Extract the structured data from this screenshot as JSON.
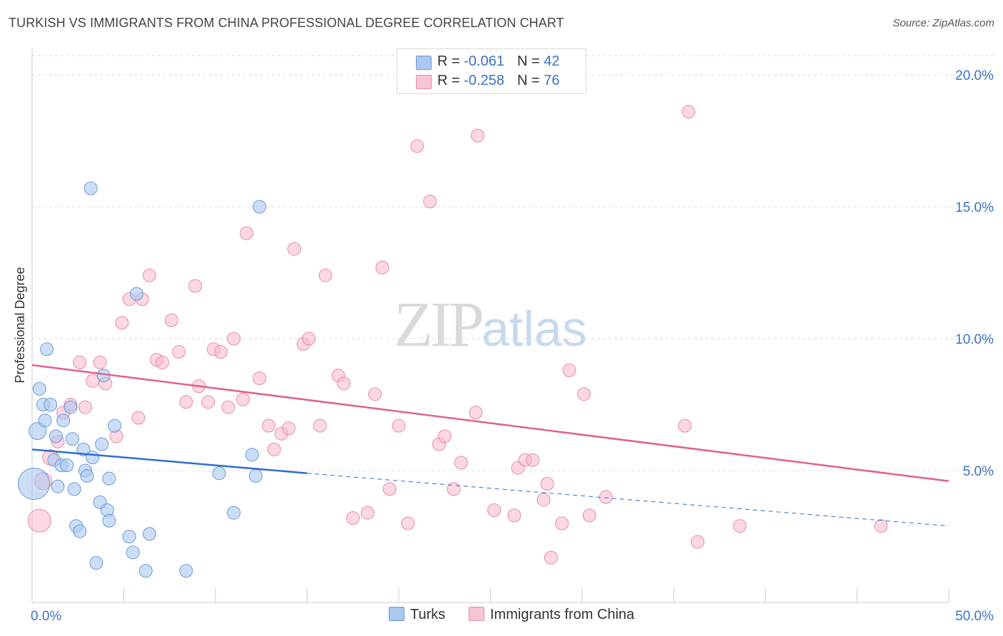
{
  "title": "TURKISH VS IMMIGRANTS FROM CHINA PROFESSIONAL DEGREE CORRELATION CHART",
  "source": "Source: ZipAtlas.com",
  "watermark": {
    "zip": "ZIP",
    "atlas": "atlas"
  },
  "colors": {
    "turks_fill": "#aac8f0",
    "turks_stroke": "#6a9ad8",
    "turks_line": "#2f6fcc",
    "china_fill": "#f7b8cb",
    "china_stroke": "#e88aa8",
    "china_line": "#e0608c",
    "axis_label": "#3b73c4",
    "grid": "#dddddd"
  },
  "legend": {
    "rows": [
      {
        "r_label": "R = ",
        "r_value": "-0.061",
        "n_label": "N = ",
        "n_value": "42"
      },
      {
        "r_label": "R = ",
        "r_value": "-0.258",
        "n_label": "N = ",
        "n_value": "76"
      }
    ]
  },
  "bottom_legend": {
    "turks": "Turks",
    "china": "Immigrants from China"
  },
  "chart_data": {
    "type": "scatter",
    "title": "TURKISH VS IMMIGRANTS FROM CHINA PROFESSIONAL DEGREE CORRELATION CHART",
    "xlabel": "",
    "ylabel": "Professional Degree",
    "xlim": [
      0,
      50
    ],
    "ylim": [
      0,
      21
    ],
    "x_tick_labels": [
      "0.0%",
      "50.0%"
    ],
    "y_ticks": [
      5,
      10,
      15,
      20
    ],
    "y_tick_labels": [
      "5.0%",
      "10.0%",
      "15.0%",
      "20.0%"
    ],
    "grid": true,
    "legend_placement": "top-center",
    "series": [
      {
        "name": "Turks",
        "trend": {
          "x0": 0,
          "y0": 5.8,
          "x1": 15,
          "y1": 4.9,
          "dash_to_x": 50,
          "dash_to_y": 2.9
        },
        "points": [
          [
            0.1,
            4.5,
            22
          ],
          [
            0.3,
            6.5,
            12
          ],
          [
            0.4,
            8.1,
            9
          ],
          [
            0.6,
            7.5,
            9
          ],
          [
            0.7,
            6.9,
            9
          ],
          [
            0.8,
            9.6,
            9
          ],
          [
            1.0,
            7.5,
            9
          ],
          [
            1.2,
            5.4,
            9
          ],
          [
            1.3,
            6.3,
            9
          ],
          [
            1.4,
            4.4,
            9
          ],
          [
            1.6,
            5.2,
            9
          ],
          [
            1.7,
            6.9,
            9
          ],
          [
            1.9,
            5.2,
            9
          ],
          [
            2.1,
            7.4,
            9
          ],
          [
            2.2,
            6.2,
            9
          ],
          [
            2.3,
            4.3,
            9
          ],
          [
            2.4,
            2.9,
            9
          ],
          [
            2.6,
            2.7,
            9
          ],
          [
            2.8,
            5.8,
            9
          ],
          [
            2.9,
            5.0,
            9
          ],
          [
            3.0,
            4.8,
            9
          ],
          [
            3.3,
            5.5,
            9
          ],
          [
            3.5,
            1.5,
            9
          ],
          [
            3.7,
            3.8,
            9
          ],
          [
            3.8,
            6.0,
            9
          ],
          [
            3.9,
            8.6,
            9
          ],
          [
            4.1,
            3.5,
            9
          ],
          [
            4.2,
            3.1,
            9
          ],
          [
            4.2,
            4.7,
            9
          ],
          [
            4.5,
            6.7,
            9
          ],
          [
            5.3,
            2.5,
            9
          ],
          [
            5.5,
            1.9,
            9
          ],
          [
            5.7,
            11.7,
            9
          ],
          [
            6.2,
            1.2,
            9
          ],
          [
            6.4,
            2.6,
            9
          ],
          [
            8.4,
            1.2,
            9
          ],
          [
            10.2,
            4.9,
            9
          ],
          [
            11.0,
            3.4,
            9
          ],
          [
            12.0,
            5.6,
            9
          ],
          [
            12.2,
            4.8,
            9
          ],
          [
            12.4,
            15.0,
            9
          ],
          [
            3.2,
            15.7,
            9
          ]
        ]
      },
      {
        "name": "Immigrants from China",
        "trend": {
          "x0": 0,
          "y0": 9.0,
          "x1": 50,
          "y1": 4.6
        },
        "points": [
          [
            0.4,
            3.1,
            16
          ],
          [
            0.6,
            4.6,
            12
          ],
          [
            1.0,
            5.5,
            11
          ],
          [
            1.4,
            6.1,
            9
          ],
          [
            1.7,
            7.2,
            9
          ],
          [
            2.1,
            7.5,
            9
          ],
          [
            2.6,
            9.1,
            9
          ],
          [
            2.9,
            7.4,
            9
          ],
          [
            3.3,
            8.4,
            9
          ],
          [
            3.7,
            9.1,
            9
          ],
          [
            4.0,
            8.3,
            9
          ],
          [
            4.6,
            6.3,
            9
          ],
          [
            4.9,
            10.6,
            9
          ],
          [
            5.3,
            11.5,
            9
          ],
          [
            6.0,
            11.5,
            9
          ],
          [
            5.8,
            7.0,
            9
          ],
          [
            6.4,
            12.4,
            9
          ],
          [
            6.8,
            9.2,
            9
          ],
          [
            7.1,
            9.1,
            9
          ],
          [
            7.6,
            10.7,
            9
          ],
          [
            8.0,
            9.5,
            9
          ],
          [
            8.4,
            7.6,
            9
          ],
          [
            8.9,
            12.0,
            9
          ],
          [
            9.1,
            8.2,
            9
          ],
          [
            9.6,
            7.6,
            9
          ],
          [
            9.9,
            9.6,
            9
          ],
          [
            10.3,
            9.5,
            9
          ],
          [
            10.7,
            7.4,
            9
          ],
          [
            11.0,
            10.0,
            9
          ],
          [
            11.5,
            7.7,
            9
          ],
          [
            11.7,
            14.0,
            9
          ],
          [
            12.4,
            8.5,
            9
          ],
          [
            12.9,
            6.7,
            9
          ],
          [
            13.2,
            5.8,
            9
          ],
          [
            13.6,
            6.4,
            9
          ],
          [
            14.0,
            6.6,
            9
          ],
          [
            14.3,
            13.4,
            9
          ],
          [
            14.8,
            9.8,
            9
          ],
          [
            15.1,
            10.0,
            9
          ],
          [
            15.7,
            6.7,
            9
          ],
          [
            16.0,
            12.4,
            9
          ],
          [
            16.7,
            8.6,
            9
          ],
          [
            17.0,
            8.3,
            9
          ],
          [
            17.5,
            3.2,
            9
          ],
          [
            18.3,
            3.4,
            9
          ],
          [
            18.7,
            7.9,
            9
          ],
          [
            19.1,
            12.7,
            9
          ],
          [
            19.5,
            4.3,
            9
          ],
          [
            20.0,
            6.7,
            9
          ],
          [
            20.5,
            3.0,
            9
          ],
          [
            21.0,
            17.3,
            9
          ],
          [
            21.7,
            15.2,
            9
          ],
          [
            22.2,
            6.0,
            9
          ],
          [
            22.5,
            6.3,
            9
          ],
          [
            23.0,
            4.3,
            9
          ],
          [
            23.4,
            5.3,
            9
          ],
          [
            24.2,
            7.2,
            9
          ],
          [
            24.3,
            17.7,
            9
          ],
          [
            25.2,
            3.5,
            9
          ],
          [
            26.3,
            3.3,
            9
          ],
          [
            26.5,
            5.1,
            9
          ],
          [
            26.9,
            5.4,
            9
          ],
          [
            27.3,
            5.4,
            9
          ],
          [
            27.9,
            3.9,
            9
          ],
          [
            28.1,
            4.5,
            9
          ],
          [
            28.3,
            1.7,
            9
          ],
          [
            28.9,
            3.0,
            9
          ],
          [
            29.3,
            8.8,
            9
          ],
          [
            30.1,
            7.9,
            9
          ],
          [
            30.4,
            3.3,
            9
          ],
          [
            31.3,
            4.0,
            9
          ],
          [
            35.6,
            6.7,
            9
          ],
          [
            35.8,
            18.6,
            9
          ],
          [
            36.3,
            2.3,
            9
          ],
          [
            38.6,
            2.9,
            9
          ],
          [
            46.3,
            2.9,
            9
          ]
        ]
      }
    ]
  }
}
